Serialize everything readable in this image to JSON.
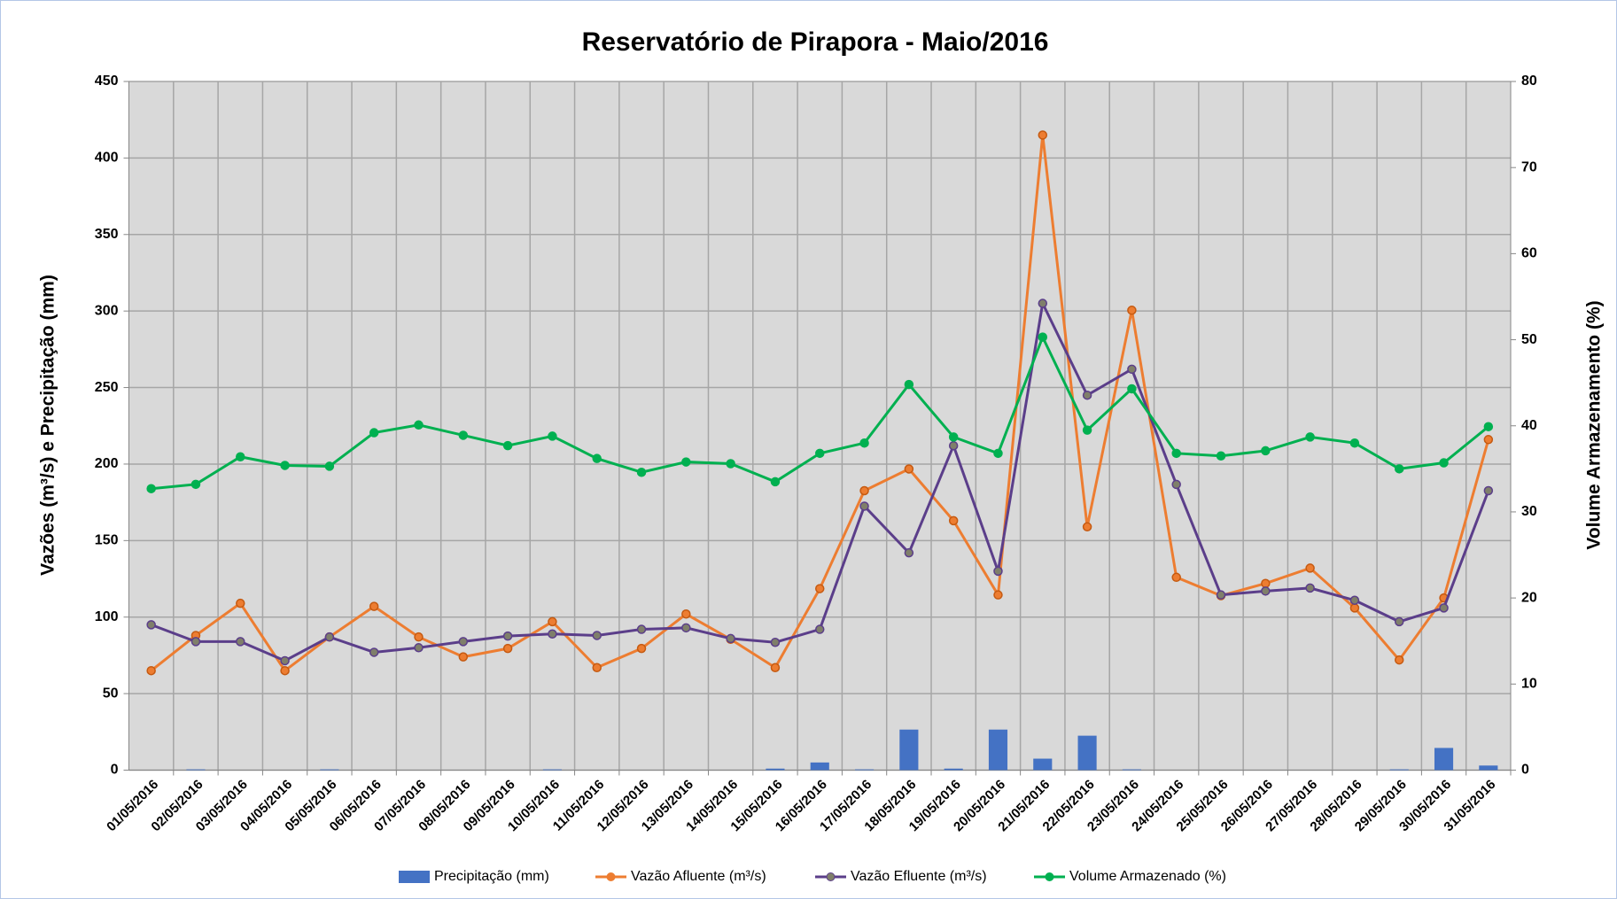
{
  "chart_data": {
    "type": "combo",
    "title": "Reservatório de Pirapora - Maio/2016",
    "y_label": "Vazões (m³/s) e Precipitação (mm)",
    "y2_label": "Volume Armazenamento (%)",
    "categories": [
      "01/05/2016",
      "02/05/2016",
      "03/05/2016",
      "04/05/2016",
      "05/05/2016",
      "06/05/2016",
      "07/05/2016",
      "08/05/2016",
      "09/05/2016",
      "10/05/2016",
      "11/05/2016",
      "12/05/2016",
      "13/05/2016",
      "14/05/2016",
      "15/05/2016",
      "16/05/2016",
      "17/05/2016",
      "18/05/2016",
      "19/05/2016",
      "20/05/2016",
      "21/05/2016",
      "22/05/2016",
      "23/05/2016",
      "24/05/2016",
      "25/05/2016",
      "26/05/2016",
      "27/05/2016",
      "28/05/2016",
      "29/05/2016",
      "30/05/2016",
      "31/05/2016"
    ],
    "ylim": [
      0,
      450
    ],
    "yticks": [
      0,
      50,
      100,
      150,
      200,
      250,
      300,
      350,
      400,
      450
    ],
    "y2lim": [
      0,
      80
    ],
    "y2ticks": [
      0,
      10,
      20,
      30,
      40,
      50,
      60,
      70,
      80
    ],
    "grid": true,
    "legend": "bottom",
    "series": [
      {
        "name": "Precipitação (mm)",
        "type": "bar",
        "color": "#4472c4",
        "values": [
          0,
          0.5,
          0,
          0,
          0.5,
          0,
          0,
          0,
          0,
          0.5,
          0,
          0,
          0,
          0,
          1,
          5,
          0.5,
          26.5,
          1,
          26.5,
          7.5,
          22.5,
          0.5,
          0,
          0,
          0,
          0,
          0,
          0.5,
          14.5,
          3
        ]
      },
      {
        "name": "Vazão Afluente (m³/s)",
        "type": "line",
        "color": "#ed7d31",
        "values": [
          65,
          88,
          109,
          65,
          87,
          107,
          87,
          74,
          79.5,
          97,
          67,
          79.5,
          102,
          85.5,
          67,
          118.6,
          182.6,
          196.8,
          163,
          114.5,
          415,
          159,
          300.5,
          126,
          114,
          122,
          132,
          106,
          72,
          112.5,
          216
        ]
      },
      {
        "name": "Vazão Efluente (m³/s)",
        "type": "line",
        "color": "#5b3e8a",
        "values": [
          95,
          84,
          84,
          71.5,
          87,
          77,
          80,
          84,
          87.6,
          89,
          88,
          92,
          93,
          86,
          83.5,
          92,
          172.5,
          142,
          212,
          130,
          305,
          245,
          262,
          186.7,
          114.5,
          117,
          119,
          111,
          97,
          106,
          182.6
        ]
      },
      {
        "name": "Volume Armazenado (%)",
        "type": "line",
        "color": "#00b050",
        "axis": "y2",
        "values": [
          32.7,
          33.2,
          36.4,
          35.4,
          35.3,
          39.2,
          40.1,
          38.9,
          37.7,
          38.8,
          36.2,
          34.6,
          35.8,
          35.6,
          33.5,
          36.8,
          38,
          44.8,
          38.7,
          36.8,
          50.3,
          39.5,
          44.3,
          36.8,
          36.5,
          37.1,
          38.7,
          38,
          35,
          35.7,
          39.9
        ]
      }
    ]
  }
}
